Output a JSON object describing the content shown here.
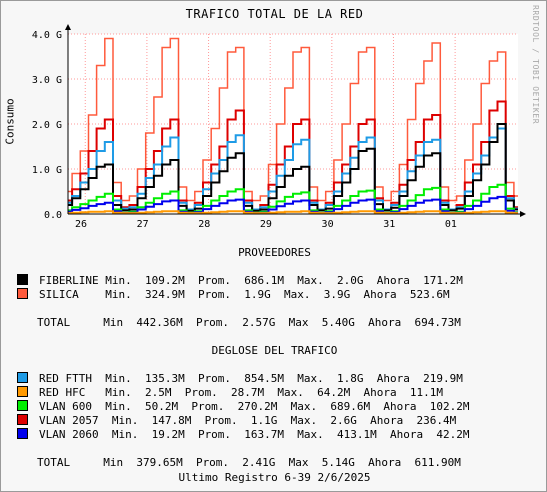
{
  "title": "TRAFICO TOTAL DE LA RED",
  "ylabel": "Consumo",
  "watermark": "RRDTOOL / TOBI OETIKER",
  "chart_data": {
    "type": "line",
    "x_ticks": [
      "26",
      "27",
      "28",
      "29",
      "30",
      "31",
      "01"
    ],
    "y_ticks": [
      "0.0",
      "1.0 G",
      "2.0 G",
      "3.0 G",
      "4.0 G"
    ],
    "ylim": [
      0,
      4.0
    ],
    "unit": "G",
    "grid": true,
    "series": [
      {
        "name": "SILICA",
        "color": "#ff5a3c",
        "values": [
          0.5,
          0.9,
          1.4,
          2.2,
          3.3,
          3.9,
          0.7,
          0.3,
          0.4,
          1.0,
          1.8,
          2.6,
          3.7,
          3.9,
          0.6,
          0.3,
          0.5,
          1.2,
          1.9,
          2.8,
          3.6,
          3.7,
          0.5,
          0.3,
          0.4,
          1.1,
          2.0,
          2.8,
          3.6,
          3.7,
          0.6,
          0.3,
          0.5,
          1.2,
          2.0,
          2.9,
          3.6,
          3.7,
          0.6,
          0.3,
          0.5,
          1.1,
          2.1,
          2.9,
          3.4,
          3.8,
          0.6,
          0.3,
          0.4,
          1.2,
          2.0,
          2.9,
          3.4,
          3.6,
          0.7,
          0.4
        ]
      },
      {
        "name": "VLAN 2057",
        "color": "#dd0000",
        "values": [
          0.3,
          0.55,
          0.9,
          1.4,
          1.9,
          2.1,
          0.4,
          0.15,
          0.2,
          0.6,
          1.0,
          1.4,
          1.9,
          2.1,
          0.3,
          0.1,
          0.25,
          0.7,
          1.1,
          1.5,
          2.1,
          2.3,
          0.3,
          0.1,
          0.2,
          0.65,
          1.1,
          1.5,
          2.0,
          2.1,
          0.3,
          0.1,
          0.25,
          0.7,
          1.1,
          1.5,
          2.0,
          2.1,
          0.35,
          0.1,
          0.25,
          0.65,
          1.2,
          1.6,
          2.1,
          2.2,
          0.3,
          0.1,
          0.2,
          0.7,
          1.1,
          1.6,
          2.3,
          2.5,
          0.4,
          0.15
        ]
      },
      {
        "name": "RED FTTH",
        "color": "#1e9be6",
        "values": [
          0.25,
          0.4,
          0.7,
          1.0,
          1.4,
          1.6,
          0.3,
          0.12,
          0.15,
          0.45,
          0.8,
          1.1,
          1.5,
          1.7,
          0.25,
          0.1,
          0.2,
          0.55,
          0.9,
          1.2,
          1.6,
          1.75,
          0.25,
          0.1,
          0.15,
          0.5,
          0.85,
          1.2,
          1.55,
          1.65,
          0.25,
          0.1,
          0.2,
          0.5,
          0.9,
          1.25,
          1.6,
          1.7,
          0.3,
          0.1,
          0.2,
          0.5,
          0.95,
          1.3,
          1.6,
          1.65,
          0.25,
          0.1,
          0.15,
          0.5,
          0.9,
          1.3,
          1.7,
          1.9,
          0.35,
          0.12
        ]
      },
      {
        "name": "FIBERLINE",
        "color": "#000000",
        "values": [
          0.2,
          0.35,
          0.55,
          0.8,
          1.05,
          1.1,
          0.2,
          0.08,
          0.1,
          0.35,
          0.6,
          0.85,
          1.1,
          1.2,
          0.18,
          0.07,
          0.12,
          0.4,
          0.7,
          0.95,
          1.25,
          1.35,
          0.18,
          0.07,
          0.1,
          0.35,
          0.6,
          0.85,
          1.0,
          1.05,
          0.2,
          0.08,
          0.12,
          0.4,
          0.7,
          1.0,
          1.4,
          1.45,
          0.22,
          0.08,
          0.14,
          0.4,
          0.75,
          1.05,
          1.3,
          1.35,
          0.2,
          0.08,
          0.12,
          0.4,
          0.75,
          1.1,
          1.6,
          2.0,
          0.3,
          0.1
        ]
      },
      {
        "name": "VLAN 600",
        "color": "#00ee00",
        "values": [
          0.08,
          0.15,
          0.22,
          0.3,
          0.38,
          0.45,
          0.1,
          0.03,
          0.05,
          0.15,
          0.25,
          0.35,
          0.45,
          0.5,
          0.08,
          0.03,
          0.06,
          0.18,
          0.3,
          0.4,
          0.5,
          0.55,
          0.08,
          0.03,
          0.05,
          0.16,
          0.28,
          0.38,
          0.45,
          0.48,
          0.08,
          0.03,
          0.06,
          0.18,
          0.3,
          0.4,
          0.5,
          0.52,
          0.1,
          0.03,
          0.06,
          0.18,
          0.3,
          0.42,
          0.55,
          0.58,
          0.1,
          0.03,
          0.05,
          0.18,
          0.3,
          0.45,
          0.6,
          0.65,
          0.12,
          0.04
        ]
      },
      {
        "name": "VLAN 2060",
        "color": "#0000ee",
        "values": [
          0.05,
          0.09,
          0.13,
          0.18,
          0.22,
          0.25,
          0.06,
          0.02,
          0.03,
          0.1,
          0.16,
          0.22,
          0.28,
          0.3,
          0.05,
          0.02,
          0.04,
          0.11,
          0.18,
          0.24,
          0.3,
          0.32,
          0.05,
          0.02,
          0.03,
          0.1,
          0.17,
          0.23,
          0.28,
          0.3,
          0.05,
          0.02,
          0.04,
          0.11,
          0.18,
          0.25,
          0.3,
          0.32,
          0.06,
          0.02,
          0.04,
          0.11,
          0.18,
          0.25,
          0.3,
          0.32,
          0.06,
          0.02,
          0.03,
          0.11,
          0.18,
          0.27,
          0.35,
          0.38,
          0.07,
          0.03
        ]
      },
      {
        "name": "RED HFC",
        "color": "#ff9900",
        "values": [
          0.02,
          0.03,
          0.04,
          0.05,
          0.05,
          0.06,
          0.03,
          0.02,
          0.02,
          0.03,
          0.04,
          0.05,
          0.06,
          0.06,
          0.03,
          0.02,
          0.02,
          0.03,
          0.04,
          0.05,
          0.06,
          0.06,
          0.03,
          0.02,
          0.02,
          0.03,
          0.04,
          0.05,
          0.05,
          0.06,
          0.03,
          0.02,
          0.02,
          0.03,
          0.04,
          0.05,
          0.06,
          0.06,
          0.03,
          0.02,
          0.02,
          0.03,
          0.04,
          0.05,
          0.06,
          0.06,
          0.03,
          0.02,
          0.02,
          0.03,
          0.04,
          0.05,
          0.06,
          0.06,
          0.03,
          0.02
        ]
      }
    ]
  },
  "proveedores": {
    "heading": "PROVEEDORES",
    "rows": [
      {
        "color": "#000000",
        "text": "FIBERLINE Min.  109.2M  Prom.  686.1M  Max.  2.0G  Ahora  171.2M"
      },
      {
        "color": "#ff5a3c",
        "text": "SILICA    Min.  324.9M  Prom.  1.9G  Max.  3.9G  Ahora  523.6M"
      }
    ],
    "total": "TOTAL     Min  442.36M  Prom.  2.57G  Max  5.40G  Ahora  694.73M"
  },
  "desglose": {
    "heading": "DEGLOSE DEL TRAFICO",
    "rows": [
      {
        "color": "#1e9be6",
        "text": "RED FTTH  Min.  135.3M  Prom.  854.5M  Max.  1.8G  Ahora  219.9M"
      },
      {
        "color": "#ff9900",
        "text": "RED HFC   Min.  2.5M  Prom.  28.7M  Max.  64.2M  Ahora  11.1M"
      },
      {
        "color": "#00ee00",
        "text": "VLAN 600  Min.  50.2M  Prom.  270.2M  Max.  689.6M  Ahora  102.2M"
      },
      {
        "color": "#dd0000",
        "text": "VLAN 2057  Min.  147.8M  Prom.  1.1G  Max.  2.6G  Ahora  236.4M"
      },
      {
        "color": "#0000ee",
        "text": "VLAN 2060  Min.  19.2M  Prom.  163.7M  Max.  413.1M  Ahora  42.2M"
      }
    ],
    "total": "TOTAL     Min  379.65M  Prom.  2.41G  Max  5.14G  Ahora  611.90M"
  },
  "footer": "Ultimo Registro 6-39 2/6/2025"
}
